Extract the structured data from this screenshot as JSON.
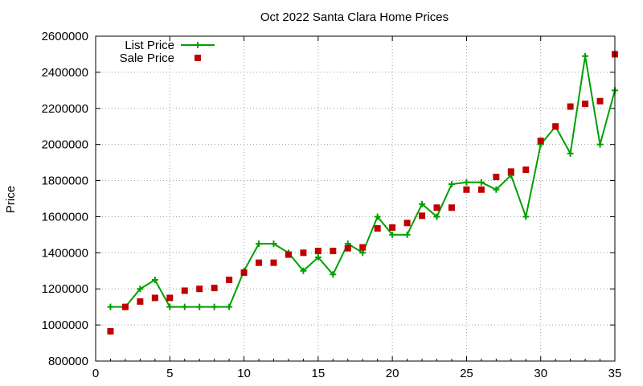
{
  "chart_data": {
    "type": "line",
    "title": "Oct 2022 Santa Clara Home Prices",
    "xlabel": "",
    "ylabel": "Price",
    "xlim": [
      0,
      35
    ],
    "ylim": [
      800000,
      2600000
    ],
    "xticks": [
      "0",
      "5",
      "10",
      "15",
      "20",
      "25",
      "30",
      "35"
    ],
    "yticks": [
      "800000",
      "1000000",
      "1200000",
      "1400000",
      "1600000",
      "1800000",
      "2000000",
      "2200000",
      "2400000",
      "2600000"
    ],
    "grid": true,
    "legend_position": "top-left",
    "x": [
      1,
      2,
      3,
      4,
      5,
      6,
      7,
      8,
      9,
      10,
      11,
      12,
      13,
      14,
      15,
      16,
      17,
      18,
      19,
      20,
      21,
      22,
      23,
      24,
      25,
      26,
      27,
      28,
      29,
      30,
      31,
      32,
      33,
      34,
      35
    ],
    "series": [
      {
        "name": "List Price",
        "style": "linespoints",
        "color": "#00a000",
        "values": [
          1100000,
          1100000,
          1200000,
          1250000,
          1100000,
          1100000,
          1100000,
          1100000,
          1100000,
          1300000,
          1450000,
          1450000,
          1400000,
          1300000,
          1375000,
          1280000,
          1450000,
          1400000,
          1600000,
          1500000,
          1500000,
          1670000,
          1600000,
          1780000,
          1790000,
          1790000,
          1750000,
          1830000,
          1600000,
          2000000,
          2100000,
          1950000,
          2490000,
          2000000,
          2300000
        ]
      },
      {
        "name": "Sale Price",
        "style": "points",
        "color": "#c00000",
        "values": [
          965000,
          1100000,
          1130000,
          1150000,
          1150000,
          1190000,
          1200000,
          1205000,
          1250000,
          1290000,
          1345000,
          1345000,
          1390000,
          1400000,
          1410000,
          1410000,
          1425000,
          1430000,
          1535000,
          1540000,
          1565000,
          1605000,
          1650000,
          1650000,
          1750000,
          1750000,
          1820000,
          1850000,
          1860000,
          2020000,
          2100000,
          2210000,
          2225000,
          2240000,
          2500000
        ]
      }
    ]
  }
}
